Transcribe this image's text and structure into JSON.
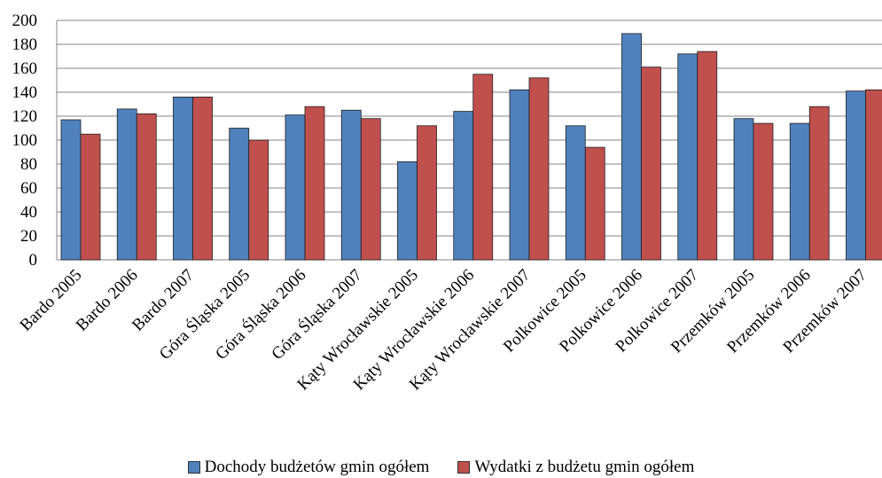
{
  "chart_data": {
    "type": "bar",
    "categories": [
      "Bardo 2005",
      "Bardo 2006",
      "Bardo 2007",
      "Góra Śląska 2005",
      "Góra Śląska 2006",
      "Góra Śląska 2007",
      "Kąty Wrocławskie 2005",
      "Kąty Wrocławskie 2006",
      "Kąty Wrocławskie 2007",
      "Polkowice 2005",
      "Polkowice 2006",
      "Polkowice 2007",
      "Przemków 2005",
      "Przemków 2006",
      "Przemków 2007"
    ],
    "series": [
      {
        "name": "Dochody budżetów gmin ogółem",
        "color": "#4F81BD",
        "values": [
          117,
          126,
          136,
          110,
          121,
          125,
          82,
          124,
          142,
          112,
          189,
          172,
          118,
          114,
          141
        ]
      },
      {
        "name": "Wydatki z budżetu gmin ogółem",
        "color": "#C0504D",
        "values": [
          105,
          122,
          136,
          100,
          128,
          118,
          112,
          155,
          152,
          94,
          161,
          174,
          114,
          128,
          142
        ]
      }
    ],
    "yticks": [
      "0",
      "20",
      "40",
      "60",
      "80",
      "100",
      "120",
      "140",
      "160",
      "180",
      "200"
    ],
    "ylim": [
      0,
      200
    ],
    "grid": true,
    "legend_position": "bottom"
  }
}
